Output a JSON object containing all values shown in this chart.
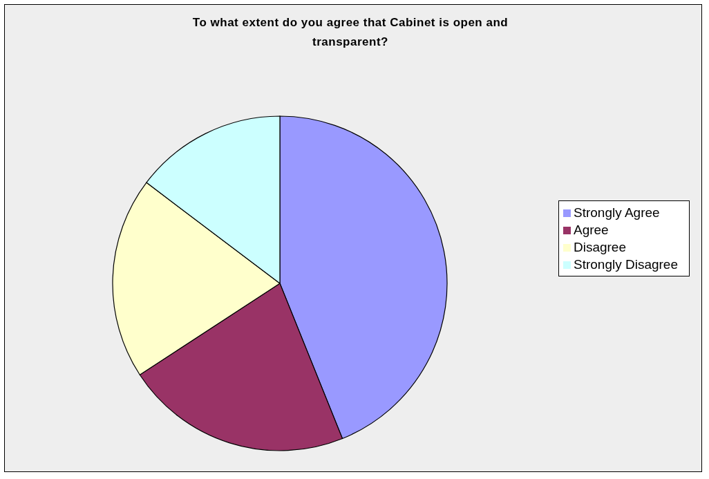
{
  "chart_data": {
    "type": "pie",
    "title": "To what extent do you agree that Cabinet is open and transparent?",
    "categories": [
      "Strongly Agree",
      "Agree",
      "Disagree",
      "Strongly Disagree"
    ],
    "values": [
      43.9,
      21.9,
      19.5,
      14.7
    ],
    "colors": [
      "#9999ff",
      "#993366",
      "#ffffcc",
      "#ccffff"
    ],
    "legend": "right"
  }
}
